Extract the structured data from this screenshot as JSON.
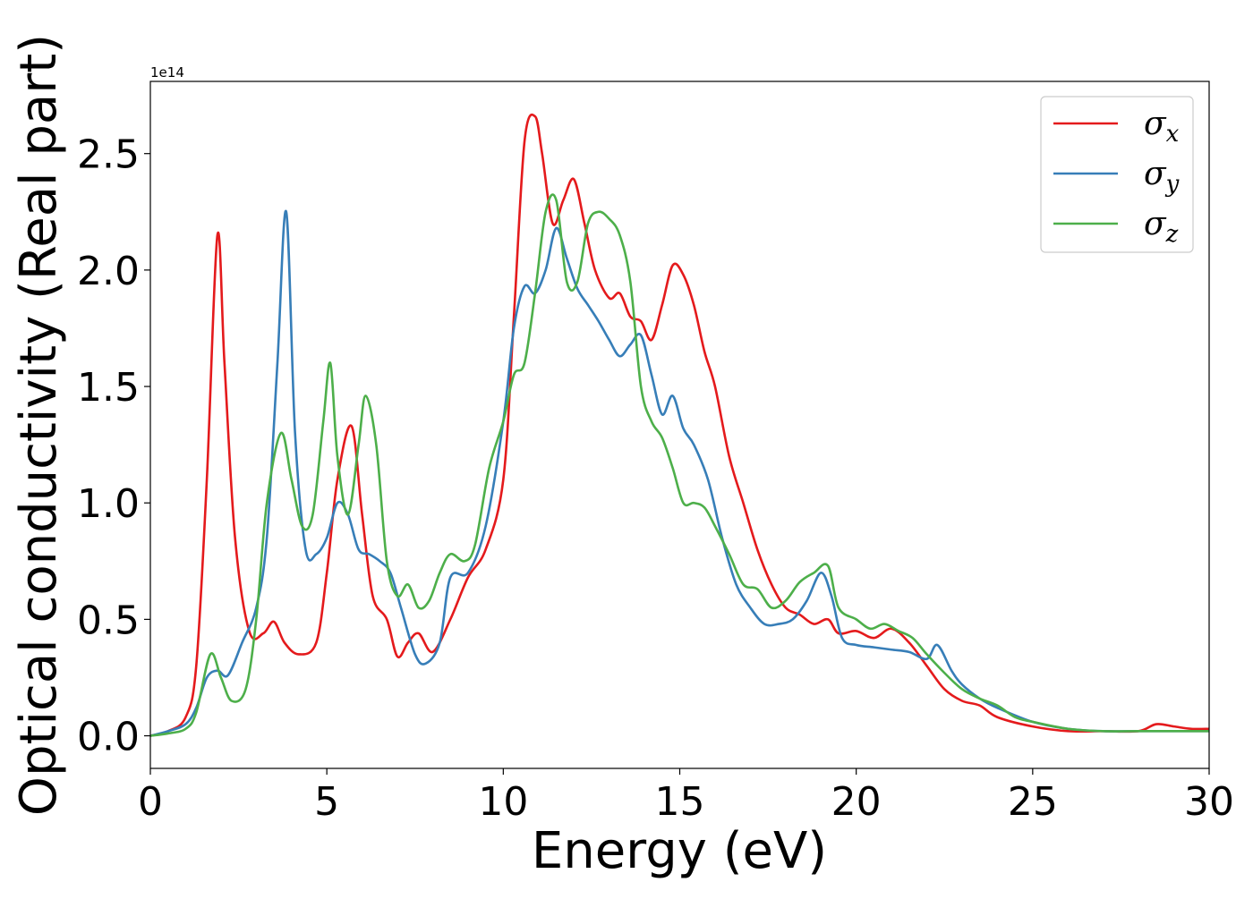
{
  "chart_data": {
    "type": "line",
    "title": "",
    "xlabel": "Energy (eV)",
    "ylabel": "Optical conductivity (Real part)",
    "y_offset_label": "1e14",
    "xlim": [
      0,
      30
    ],
    "ylim": [
      -0.14,
      2.81
    ],
    "x_ticks": [
      0,
      5,
      10,
      15,
      20,
      25,
      30
    ],
    "x_tick_labels": [
      "0",
      "5",
      "10",
      "15",
      "20",
      "25",
      "30"
    ],
    "y_ticks": [
      0.0,
      0.5,
      1.0,
      1.5,
      2.0,
      2.5
    ],
    "y_tick_labels": [
      "0.0",
      "0.5",
      "1.0",
      "1.5",
      "2.0",
      "2.5"
    ],
    "grid": false,
    "legend_position": "top-right",
    "series": [
      {
        "name": "σ",
        "subscript": "x",
        "color": "#e41a1c",
        "x": [
          0,
          0.5,
          1.0,
          1.3,
          1.6,
          1.9,
          2.1,
          2.4,
          2.8,
          3.2,
          3.5,
          3.8,
          4.2,
          4.7,
          5.0,
          5.3,
          5.7,
          6.0,
          6.3,
          6.7,
          7.0,
          7.3,
          7.6,
          8.0,
          8.5,
          9.0,
          9.5,
          10.0,
          10.3,
          10.6,
          10.9,
          11.1,
          11.4,
          11.7,
          12.0,
          12.3,
          12.6,
          13.0,
          13.3,
          13.6,
          13.9,
          14.2,
          14.5,
          14.8,
          15.1,
          15.4,
          15.7,
          16.0,
          16.4,
          16.8,
          17.2,
          17.6,
          18.0,
          18.4,
          18.8,
          19.2,
          19.5,
          20.0,
          20.5,
          21.0,
          21.5,
          22.0,
          22.5,
          23.0,
          23.5,
          24.0,
          25.0,
          26.0,
          27.0,
          28.0,
          28.5,
          29.0,
          29.5,
          30.0
        ],
        "y": [
          0,
          0.02,
          0.08,
          0.3,
          1.1,
          2.15,
          1.6,
          0.85,
          0.45,
          0.44,
          0.49,
          0.4,
          0.35,
          0.4,
          0.7,
          1.1,
          1.33,
          0.95,
          0.6,
          0.5,
          0.34,
          0.4,
          0.44,
          0.36,
          0.5,
          0.68,
          0.8,
          1.1,
          1.8,
          2.55,
          2.66,
          2.5,
          2.2,
          2.3,
          2.39,
          2.2,
          2.0,
          1.88,
          1.9,
          1.8,
          1.78,
          1.7,
          1.85,
          2.02,
          1.98,
          1.85,
          1.65,
          1.5,
          1.2,
          1.0,
          0.8,
          0.65,
          0.55,
          0.52,
          0.48,
          0.5,
          0.44,
          0.45,
          0.42,
          0.46,
          0.4,
          0.3,
          0.2,
          0.15,
          0.13,
          0.08,
          0.04,
          0.02,
          0.02,
          0.02,
          0.05,
          0.04,
          0.03,
          0.03
        ]
      },
      {
        "name": "σ",
        "subscript": "y",
        "color": "#377eb8",
        "x": [
          0,
          0.5,
          1.0,
          1.3,
          1.6,
          1.9,
          2.2,
          2.6,
          3.0,
          3.3,
          3.6,
          3.85,
          4.1,
          4.4,
          4.7,
          5.0,
          5.3,
          5.6,
          5.9,
          6.2,
          6.5,
          6.8,
          7.1,
          7.5,
          7.8,
          8.2,
          8.5,
          9.0,
          9.5,
          10.0,
          10.3,
          10.6,
          10.9,
          11.2,
          11.5,
          11.8,
          12.1,
          12.4,
          12.7,
          13.0,
          13.3,
          13.6,
          13.9,
          14.2,
          14.5,
          14.8,
          15.1,
          15.4,
          15.8,
          16.2,
          16.6,
          17.0,
          17.4,
          17.8,
          18.2,
          18.6,
          19.0,
          19.3,
          19.6,
          20.0,
          20.5,
          21.0,
          21.5,
          22.0,
          22.3,
          22.7,
          23.0,
          23.5,
          24.0,
          25.0,
          26.0,
          27.0,
          28.0,
          29.0,
          30.0
        ],
        "y": [
          0,
          0.02,
          0.05,
          0.12,
          0.25,
          0.28,
          0.26,
          0.4,
          0.55,
          0.85,
          1.6,
          2.25,
          1.3,
          0.8,
          0.78,
          0.85,
          1.0,
          0.95,
          0.8,
          0.78,
          0.75,
          0.7,
          0.55,
          0.35,
          0.31,
          0.4,
          0.68,
          0.7,
          0.9,
          1.35,
          1.75,
          1.93,
          1.9,
          2.0,
          2.18,
          2.05,
          1.92,
          1.85,
          1.78,
          1.7,
          1.63,
          1.68,
          1.72,
          1.55,
          1.38,
          1.46,
          1.32,
          1.25,
          1.1,
          0.85,
          0.65,
          0.55,
          0.48,
          0.48,
          0.5,
          0.58,
          0.7,
          0.6,
          0.42,
          0.39,
          0.38,
          0.37,
          0.36,
          0.33,
          0.39,
          0.28,
          0.22,
          0.16,
          0.12,
          0.06,
          0.03,
          0.02,
          0.02,
          0.02,
          0.02
        ]
      },
      {
        "name": "σ",
        "subscript": "z",
        "color": "#4daf4a",
        "x": [
          0,
          0.5,
          1.0,
          1.3,
          1.7,
          2.0,
          2.3,
          2.7,
          3.0,
          3.3,
          3.7,
          4.0,
          4.3,
          4.6,
          4.9,
          5.1,
          5.3,
          5.6,
          5.9,
          6.1,
          6.4,
          6.7,
          7.0,
          7.3,
          7.6,
          7.9,
          8.2,
          8.5,
          8.9,
          9.2,
          9.6,
          10.0,
          10.3,
          10.6,
          10.9,
          11.2,
          11.5,
          11.8,
          12.1,
          12.4,
          12.7,
          13.0,
          13.3,
          13.6,
          13.9,
          14.2,
          14.5,
          14.8,
          15.1,
          15.4,
          15.7,
          16.0,
          16.4,
          16.8,
          17.2,
          17.6,
          18.0,
          18.4,
          18.8,
          19.2,
          19.5,
          20.0,
          20.4,
          20.8,
          21.2,
          21.6,
          22.0,
          22.5,
          23.0,
          23.5,
          24.0,
          24.5,
          25.0,
          26.0,
          27.0,
          28.0,
          29.0,
          30.0
        ],
        "y": [
          0,
          0.01,
          0.03,
          0.1,
          0.35,
          0.25,
          0.15,
          0.2,
          0.5,
          1.0,
          1.3,
          1.1,
          0.9,
          0.95,
          1.35,
          1.6,
          1.2,
          0.95,
          1.25,
          1.46,
          1.25,
          0.75,
          0.6,
          0.65,
          0.55,
          0.58,
          0.7,
          0.78,
          0.75,
          0.82,
          1.15,
          1.35,
          1.55,
          1.6,
          1.9,
          2.25,
          2.3,
          1.95,
          1.95,
          2.2,
          2.25,
          2.22,
          2.15,
          1.95,
          1.5,
          1.35,
          1.28,
          1.15,
          1.0,
          1.0,
          0.98,
          0.9,
          0.78,
          0.65,
          0.63,
          0.55,
          0.58,
          0.66,
          0.7,
          0.73,
          0.55,
          0.5,
          0.46,
          0.48,
          0.45,
          0.42,
          0.35,
          0.27,
          0.2,
          0.16,
          0.13,
          0.08,
          0.06,
          0.03,
          0.02,
          0.02,
          0.02,
          0.02
        ]
      }
    ]
  }
}
